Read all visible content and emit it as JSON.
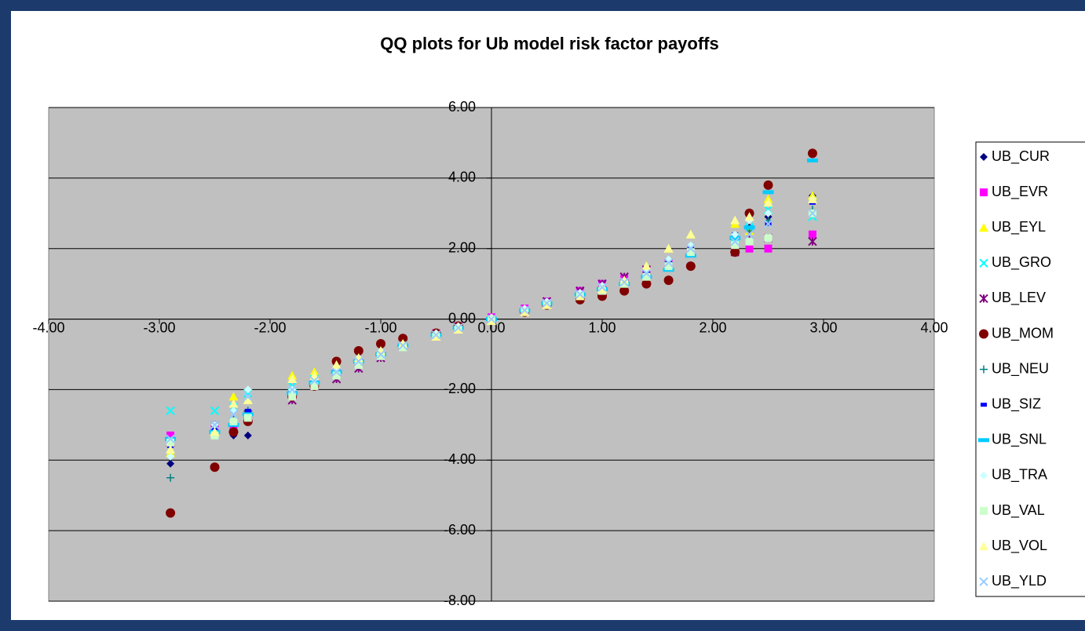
{
  "chart_data": {
    "type": "scatter",
    "title": "QQ plots for Ub model risk factor payoffs",
    "xlim": [
      -4,
      4
    ],
    "xticks": [
      {
        "value": -4,
        "label": "-4.00"
      },
      {
        "value": -3,
        "label": "-3.00"
      },
      {
        "value": -2,
        "label": "-2.00"
      },
      {
        "value": -1,
        "label": "-1.00"
      },
      {
        "value": 0,
        "label": "0.00"
      },
      {
        "value": 1,
        "label": "1.00"
      },
      {
        "value": 2,
        "label": "2.00"
      },
      {
        "value": 3,
        "label": "3.00"
      },
      {
        "value": 4,
        "label": "4.00"
      }
    ],
    "ylim": [
      -8,
      6
    ],
    "yticks": [
      {
        "value": -8,
        "label": "-8.00"
      },
      {
        "value": -6,
        "label": "-6.00"
      },
      {
        "value": -4,
        "label": "-4.00"
      },
      {
        "value": -2,
        "label": "-2.00"
      },
      {
        "value": 0,
        "label": "0.00"
      },
      {
        "value": 2,
        "label": "2.00"
      },
      {
        "value": 4,
        "label": "4.00"
      },
      {
        "value": 6,
        "label": "6.00"
      }
    ],
    "grid": true,
    "legend": "right",
    "x": [
      -2.9,
      -2.5,
      -2.33,
      -2.2,
      -1.8,
      -1.6,
      -1.4,
      -1.2,
      -1.0,
      -0.8,
      -0.5,
      -0.3,
      0,
      0.3,
      0.5,
      0.8,
      1.0,
      1.2,
      1.4,
      1.6,
      1.8,
      2.2,
      2.33,
      2.5,
      2.9
    ],
    "series": [
      {
        "name": "UB_CUR",
        "color": "#000080",
        "marker": "diamond",
        "values": [
          -4.1,
          -3.2,
          -3.3,
          -3.3,
          -2.1,
          -1.8,
          -1.4,
          -1.1,
          -0.9,
          -0.7,
          -0.45,
          -0.25,
          0,
          0.25,
          0.45,
          0.75,
          0.95,
          1.1,
          1.4,
          1.7,
          2.1,
          2.4,
          2.6,
          2.9,
          3.5
        ]
      },
      {
        "name": "UB_EVR",
        "color": "#ff00ff",
        "marker": "square",
        "values": [
          -3.3,
          -3.1,
          -3.0,
          -2.8,
          -2.2,
          -1.9,
          -1.5,
          -1.2,
          -1.0,
          -0.75,
          -0.4,
          -0.2,
          0.05,
          0.3,
          0.5,
          0.8,
          1.0,
          1.15,
          1.35,
          1.6,
          1.9,
          2.0,
          2.0,
          2.0,
          2.4
        ]
      },
      {
        "name": "UB_EYL",
        "color": "#ffff00",
        "marker": "triangle",
        "values": [
          -3.8,
          -3.2,
          -2.2,
          -2.3,
          -1.6,
          -1.5,
          -1.3,
          -1.1,
          -0.9,
          -0.7,
          -0.5,
          -0.3,
          -0.05,
          0.2,
          0.4,
          0.65,
          0.85,
          1.1,
          1.5,
          2.0,
          2.4,
          2.7,
          2.5,
          3.4,
          3.5
        ]
      },
      {
        "name": "UB_GRO",
        "color": "#00ffff",
        "marker": "x",
        "values": [
          -2.6,
          -2.6,
          -2.5,
          -2.1,
          -1.9,
          -1.7,
          -1.5,
          -1.2,
          -1.0,
          -0.75,
          -0.45,
          -0.25,
          0,
          0.25,
          0.45,
          0.7,
          0.9,
          1.05,
          1.3,
          1.5,
          1.9,
          2.3,
          2.6,
          3.1,
          2.9
        ]
      },
      {
        "name": "UB_LEV",
        "color": "#800080",
        "marker": "star",
        "values": [
          -3.5,
          -3.0,
          -2.9,
          -2.7,
          -2.3,
          -1.9,
          -1.7,
          -1.4,
          -1.1,
          -0.75,
          -0.45,
          -0.25,
          0,
          0.25,
          0.5,
          0.8,
          1.0,
          1.2,
          1.4,
          1.6,
          1.9,
          1.9,
          2.4,
          2.3,
          2.2
        ]
      },
      {
        "name": "UB_MOM",
        "color": "#800000",
        "marker": "circle",
        "values": [
          -5.5,
          -4.2,
          -3.2,
          -2.9,
          -2.2,
          -1.9,
          -1.2,
          -0.9,
          -0.7,
          -0.55,
          -0.4,
          -0.2,
          0,
          0.2,
          0.4,
          0.55,
          0.65,
          0.8,
          1.0,
          1.1,
          1.5,
          1.9,
          3.0,
          3.8,
          4.7
        ]
      },
      {
        "name": "UB_NEU",
        "color": "#008080",
        "marker": "plus",
        "values": [
          -4.5,
          -3.1,
          -2.8,
          -2.6,
          -2.1,
          -1.8,
          -1.5,
          -1.2,
          -1.0,
          -0.75,
          -0.45,
          -0.25,
          0,
          0.25,
          0.45,
          0.7,
          0.9,
          1.05,
          1.3,
          1.6,
          2.0,
          2.3,
          2.5,
          2.8,
          3.1
        ]
      },
      {
        "name": "UB_SIZ",
        "color": "#0000ff",
        "marker": "dash",
        "values": [
          -3.6,
          -3.1,
          -2.9,
          -2.6,
          -2.1,
          -1.8,
          -1.5,
          -1.2,
          -1.0,
          -0.75,
          -0.45,
          -0.25,
          0,
          0.25,
          0.45,
          0.7,
          0.9,
          1.05,
          1.3,
          1.6,
          2.0,
          2.4,
          2.6,
          2.7,
          3.3
        ]
      },
      {
        "name": "UB_SNL",
        "color": "#00ccff",
        "marker": "longdash",
        "values": [
          -3.4,
          -3.2,
          -3.0,
          -2.7,
          -2.1,
          -1.8,
          -1.5,
          -1.2,
          -1.0,
          -0.75,
          -0.45,
          -0.25,
          0,
          0.25,
          0.45,
          0.7,
          0.85,
          1.0,
          1.2,
          1.4,
          1.8,
          2.3,
          2.6,
          3.6,
          4.5
        ]
      },
      {
        "name": "UB_TRA",
        "color": "#ccffff",
        "marker": "diamond",
        "values": [
          -3.9,
          -3.0,
          -2.6,
          -2.0,
          -2.0,
          -1.7,
          -1.4,
          -1.1,
          -0.9,
          -0.7,
          -0.4,
          -0.2,
          0.05,
          0.3,
          0.5,
          0.75,
          0.95,
          1.1,
          1.4,
          1.7,
          2.1,
          2.4,
          2.8,
          3.0,
          3.4
        ]
      },
      {
        "name": "UB_VAL",
        "color": "#ccffcc",
        "marker": "square",
        "values": [
          -3.5,
          -3.3,
          -2.9,
          -2.8,
          -2.2,
          -1.9,
          -1.6,
          -1.3,
          -1.05,
          -0.8,
          -0.5,
          -0.3,
          0,
          0.2,
          0.4,
          0.65,
          0.8,
          1.0,
          1.2,
          1.5,
          1.9,
          2.1,
          2.2,
          2.3,
          3.0
        ]
      },
      {
        "name": "UB_VOL",
        "color": "#ffff99",
        "marker": "triangle",
        "values": [
          -3.7,
          -3.2,
          -2.4,
          -2.3,
          -1.7,
          -1.6,
          -1.3,
          -1.1,
          -0.9,
          -0.7,
          -0.5,
          -0.3,
          -0.05,
          0.2,
          0.4,
          0.65,
          0.85,
          1.1,
          1.5,
          2.0,
          2.4,
          2.8,
          2.9,
          3.3,
          3.4
        ]
      },
      {
        "name": "UB_YLD",
        "color": "#99ccff",
        "marker": "x",
        "values": [
          -3.4,
          -3.0,
          -2.7,
          -2.2,
          -2.0,
          -1.75,
          -1.5,
          -1.2,
          -1.0,
          -0.75,
          -0.45,
          -0.25,
          0,
          0.25,
          0.45,
          0.7,
          0.9,
          1.05,
          1.3,
          1.6,
          2.0,
          2.2,
          2.4,
          2.7,
          3.0
        ]
      }
    ]
  }
}
